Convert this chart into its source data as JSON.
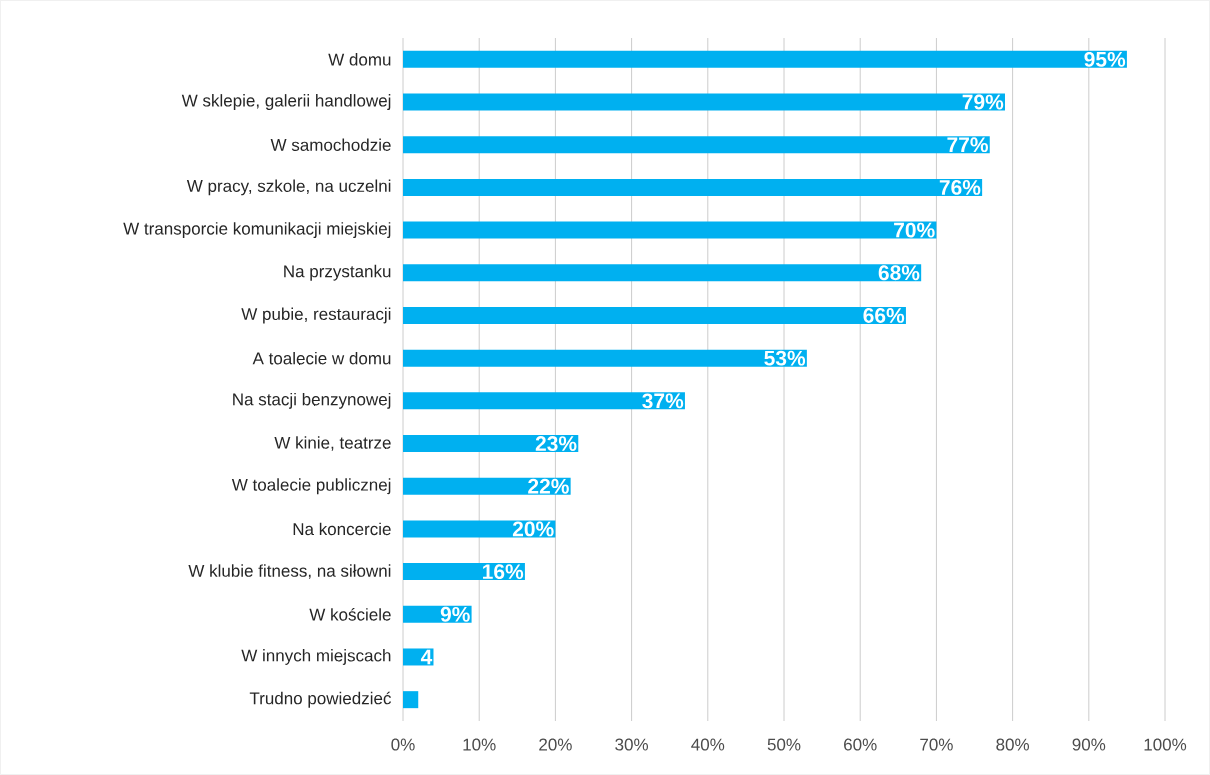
{
  "chart_data": {
    "type": "bar",
    "orientation": "horizontal",
    "categories": [
      "W domu",
      "W sklepie, galerii handlowej",
      "W samochodzie",
      "W pracy, szkole, na uczelni",
      "W transporcie komunikacji miejskiej",
      "Na przystanku",
      "W pubie, restauracji",
      "A toalecie w domu",
      "Na stacji benzynowej",
      "W kinie, teatrze",
      "W toalecie publicznej",
      "Na koncercie",
      "W klubie fitness, na siłowni",
      "W kościele",
      "W innych miejscach",
      "Trudno powiedzieć"
    ],
    "values": [
      95,
      79,
      77,
      76,
      70,
      68,
      66,
      53,
      37,
      23,
      22,
      20,
      16,
      9,
      4,
      2
    ],
    "value_labels": [
      "95%",
      "79%",
      "77%",
      "76%",
      "70%",
      "68%",
      "66%",
      "53%",
      "37%",
      "23%",
      "22%",
      "20%",
      "16%",
      "9%",
      "4",
      null
    ],
    "color": "#00b0f0",
    "xlim": [
      0,
      100
    ],
    "xticks": [
      {
        "value": 0,
        "label": "0%"
      },
      {
        "value": 10,
        "label": "10%"
      },
      {
        "value": 20,
        "label": "20%"
      },
      {
        "value": 30,
        "label": "30%"
      },
      {
        "value": 40,
        "label": "40%"
      },
      {
        "value": 50,
        "label": "50%"
      },
      {
        "value": 60,
        "label": "60%"
      },
      {
        "value": 70,
        "label": "70%"
      },
      {
        "value": 80,
        "label": "80%"
      },
      {
        "value": 90,
        "label": "90%"
      },
      {
        "value": 100,
        "label": "100%"
      }
    ],
    "grid": "x"
  }
}
